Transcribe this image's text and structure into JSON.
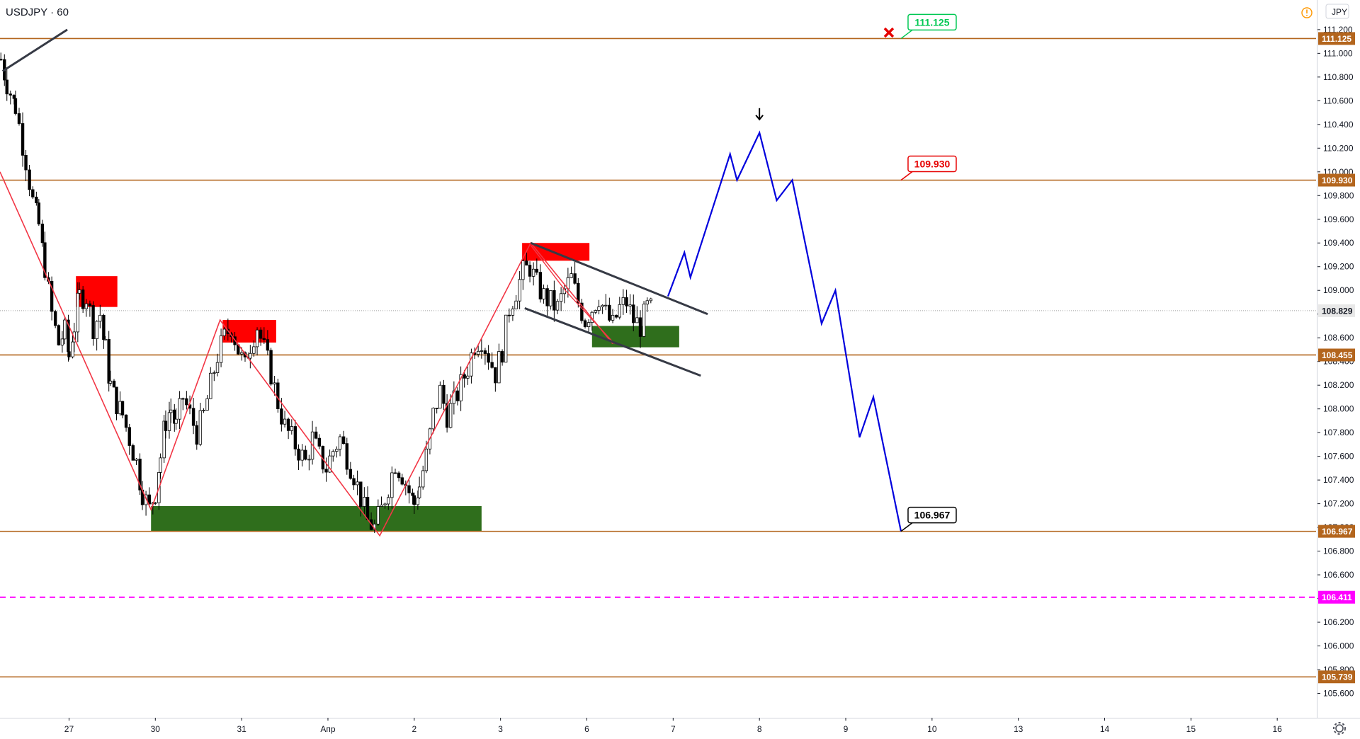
{
  "header": {
    "symbol_title": "USDJPY · 60",
    "currency_button": "JPY",
    "alert_icon": "warning-circle-icon",
    "settings_icon": "gear-icon"
  },
  "colors": {
    "level_line": "#b3651d",
    "current_price_line": "#a0a0a0",
    "magenta_line": "#ff00ff",
    "zigzag": "#f23645",
    "trend_line": "#363a45",
    "projection": "#0000dd",
    "supply_zone": "#ff0000",
    "demand_zone": "#2f6e1c",
    "callout_green": "#00c853",
    "callout_red": "#e60000",
    "callout_black": "#000000"
  },
  "chart_data": {
    "type": "candlestick",
    "symbol": "USDJPY",
    "timeframe": "60",
    "currency": "JPY",
    "y_range": [
      105.4,
      111.45
    ],
    "y_ticks": [
      105.6,
      105.8,
      106.0,
      106.2,
      106.4,
      106.6,
      106.8,
      107.0,
      107.2,
      107.4,
      107.6,
      107.8,
      108.0,
      108.2,
      108.4,
      108.6,
      108.8,
      109.0,
      109.2,
      109.4,
      109.6,
      109.8,
      110.0,
      110.2,
      110.4,
      110.6,
      110.8,
      111.0,
      111.2
    ],
    "x_ticks": [
      {
        "label": "27",
        "t": 0.0
      },
      {
        "label": "30",
        "t": 1.0
      },
      {
        "label": "31",
        "t": 2.0
      },
      {
        "label": "Апр",
        "t": 3.0
      },
      {
        "label": "2",
        "t": 4.0
      },
      {
        "label": "3",
        "t": 5.0
      },
      {
        "label": "6",
        "t": 6.0
      },
      {
        "label": "7",
        "t": 7.0
      },
      {
        "label": "8",
        "t": 8.0
      },
      {
        "label": "9",
        "t": 9.0
      },
      {
        "label": "10",
        "t": 10.0
      },
      {
        "label": "13",
        "t": 11.0
      },
      {
        "label": "14",
        "t": 12.0
      },
      {
        "label": "15",
        "t": 13.0
      },
      {
        "label": "16",
        "t": 14.0
      }
    ],
    "t_range": [
      -0.8,
      14.45
    ],
    "current_price": 108.829,
    "levels": [
      {
        "price": 111.125,
        "label": "111.125",
        "style": "level"
      },
      {
        "price": 109.93,
        "label": "109.930",
        "style": "level"
      },
      {
        "price": 108.455,
        "label": "108.455",
        "style": "level"
      },
      {
        "price": 106.967,
        "label": "106.967",
        "style": "level"
      },
      {
        "price": 106.411,
        "label": "106.411",
        "style": "magenta"
      },
      {
        "price": 105.739,
        "label": "105.739",
        "style": "level"
      }
    ],
    "current_label": "108.829",
    "candle_path": [
      [
        -0.79,
        110.95
      ],
      [
        -0.72,
        110.75
      ],
      [
        -0.62,
        110.55
      ],
      [
        -0.5,
        110.1
      ],
      [
        -0.42,
        109.75
      ],
      [
        -0.35,
        109.55
      ],
      [
        -0.28,
        109.2
      ],
      [
        -0.2,
        108.8
      ],
      [
        -0.12,
        108.55
      ],
      [
        -0.05,
        108.65
      ],
      [
        0.0,
        108.45
      ],
      [
        0.06,
        108.7
      ],
      [
        0.12,
        108.95
      ],
      [
        0.2,
        108.95
      ],
      [
        0.28,
        108.7
      ],
      [
        0.36,
        108.8
      ],
      [
        0.42,
        108.5
      ],
      [
        0.48,
        108.2
      ],
      [
        0.55,
        108.05
      ],
      [
        0.62,
        107.95
      ],
      [
        0.7,
        107.75
      ],
      [
        0.78,
        107.55
      ],
      [
        0.85,
        107.3
      ],
      [
        0.93,
        107.15
      ],
      [
        1.0,
        107.3
      ],
      [
        1.06,
        107.6
      ],
      [
        1.12,
        107.9
      ],
      [
        1.18,
        108.0
      ],
      [
        1.24,
        107.85
      ],
      [
        1.32,
        108.1
      ],
      [
        1.4,
        107.95
      ],
      [
        1.48,
        107.8
      ],
      [
        1.56,
        107.95
      ],
      [
        1.64,
        108.2
      ],
      [
        1.72,
        108.45
      ],
      [
        1.8,
        108.6
      ],
      [
        1.88,
        108.7
      ],
      [
        1.96,
        108.5
      ],
      [
        2.04,
        108.35
      ],
      [
        2.1,
        108.55
      ],
      [
        2.18,
        108.7
      ],
      [
        2.26,
        108.5
      ],
      [
        2.34,
        108.3
      ],
      [
        2.42,
        108.05
      ],
      [
        2.5,
        107.85
      ],
      [
        2.58,
        107.75
      ],
      [
        2.66,
        107.65
      ],
      [
        2.74,
        107.55
      ],
      [
        2.82,
        107.75
      ],
      [
        2.9,
        107.6
      ],
      [
        2.98,
        107.5
      ],
      [
        3.06,
        107.65
      ],
      [
        3.14,
        107.75
      ],
      [
        3.22,
        107.6
      ],
      [
        3.3,
        107.45
      ],
      [
        3.38,
        107.25
      ],
      [
        3.46,
        107.05
      ],
      [
        3.54,
        107.0
      ],
      [
        3.62,
        107.15
      ],
      [
        3.7,
        107.35
      ],
      [
        3.78,
        107.55
      ],
      [
        3.86,
        107.45
      ],
      [
        3.94,
        107.3
      ],
      [
        4.0,
        107.2
      ],
      [
        4.06,
        107.35
      ],
      [
        4.14,
        107.6
      ],
      [
        4.22,
        107.95
      ],
      [
        4.3,
        108.15
      ],
      [
        4.38,
        107.95
      ],
      [
        4.46,
        108.05
      ],
      [
        4.54,
        108.2
      ],
      [
        4.62,
        108.35
      ],
      [
        4.7,
        108.55
      ],
      [
        4.78,
        108.6
      ],
      [
        4.86,
        108.45
      ],
      [
        4.94,
        108.3
      ],
      [
        5.02,
        108.5
      ],
      [
        5.1,
        108.85
      ],
      [
        5.18,
        109.0
      ],
      [
        5.26,
        109.15
      ],
      [
        5.34,
        109.2
      ],
      [
        5.42,
        109.05
      ],
      [
        5.5,
        108.95
      ],
      [
        5.58,
        108.9
      ],
      [
        5.66,
        108.85
      ],
      [
        5.74,
        109.0
      ],
      [
        5.82,
        109.1
      ],
      [
        5.9,
        108.9
      ],
      [
        5.98,
        108.75
      ],
      [
        6.06,
        108.85
      ],
      [
        6.14,
        108.95
      ],
      [
        6.22,
        108.8
      ],
      [
        6.3,
        108.7
      ],
      [
        6.38,
        108.85
      ],
      [
        6.46,
        108.9
      ],
      [
        6.54,
        108.75
      ],
      [
        6.62,
        108.7
      ],
      [
        6.7,
        108.85
      ],
      [
        6.76,
        108.83
      ]
    ],
    "zigzag": [
      [
        -0.8,
        110.0
      ],
      [
        0.95,
        107.15
      ],
      [
        1.75,
        108.75
      ],
      [
        3.6,
        106.93
      ],
      [
        5.35,
        109.4
      ],
      [
        6.3,
        108.55
      ]
    ],
    "zigzag_inner": [
      [
        5.35,
        109.38
      ],
      [
        5.75,
        109.0
      ],
      [
        6.32,
        108.55
      ]
    ],
    "trend_lines": [
      [
        [
          -0.77,
          110.85
        ],
        [
          -0.02,
          111.2
        ]
      ],
      [
        [
          5.35,
          109.4
        ],
        [
          7.4,
          108.8
        ]
      ],
      [
        [
          5.28,
          108.85
        ],
        [
          7.32,
          108.28
        ]
      ]
    ],
    "projection": [
      [
        6.94,
        108.95
      ],
      [
        7.13,
        109.32
      ],
      [
        7.2,
        109.11
      ],
      [
        7.66,
        110.15
      ],
      [
        7.74,
        109.93
      ],
      [
        8.0,
        110.33
      ],
      [
        8.2,
        109.76
      ],
      [
        8.38,
        109.93
      ],
      [
        8.72,
        108.72
      ],
      [
        8.88,
        109.0
      ],
      [
        9.16,
        107.76
      ],
      [
        9.32,
        108.1
      ],
      [
        9.64,
        106.967
      ]
    ],
    "supply_zones": [
      [
        0.08,
        108.86,
        0.56,
        109.12
      ],
      [
        1.78,
        108.56,
        2.4,
        108.75
      ],
      [
        5.25,
        109.25,
        6.03,
        109.4
      ]
    ],
    "demand_zones": [
      [
        0.95,
        106.97,
        4.78,
        107.18
      ],
      [
        6.06,
        108.52,
        7.07,
        108.7
      ]
    ],
    "callouts": [
      {
        "label": "111.125",
        "price": 111.125,
        "t": 9.64,
        "color": "callout_green"
      },
      {
        "label": "109.930",
        "price": 109.93,
        "t": 9.64,
        "color": "callout_red"
      },
      {
        "label": "106.967",
        "price": 106.967,
        "t": 9.64,
        "color": "callout_black"
      }
    ],
    "marker_x": {
      "t": 9.5,
      "price": 111.175
    },
    "marker_arrow": {
      "t": 8.0,
      "price": 110.43
    }
  }
}
